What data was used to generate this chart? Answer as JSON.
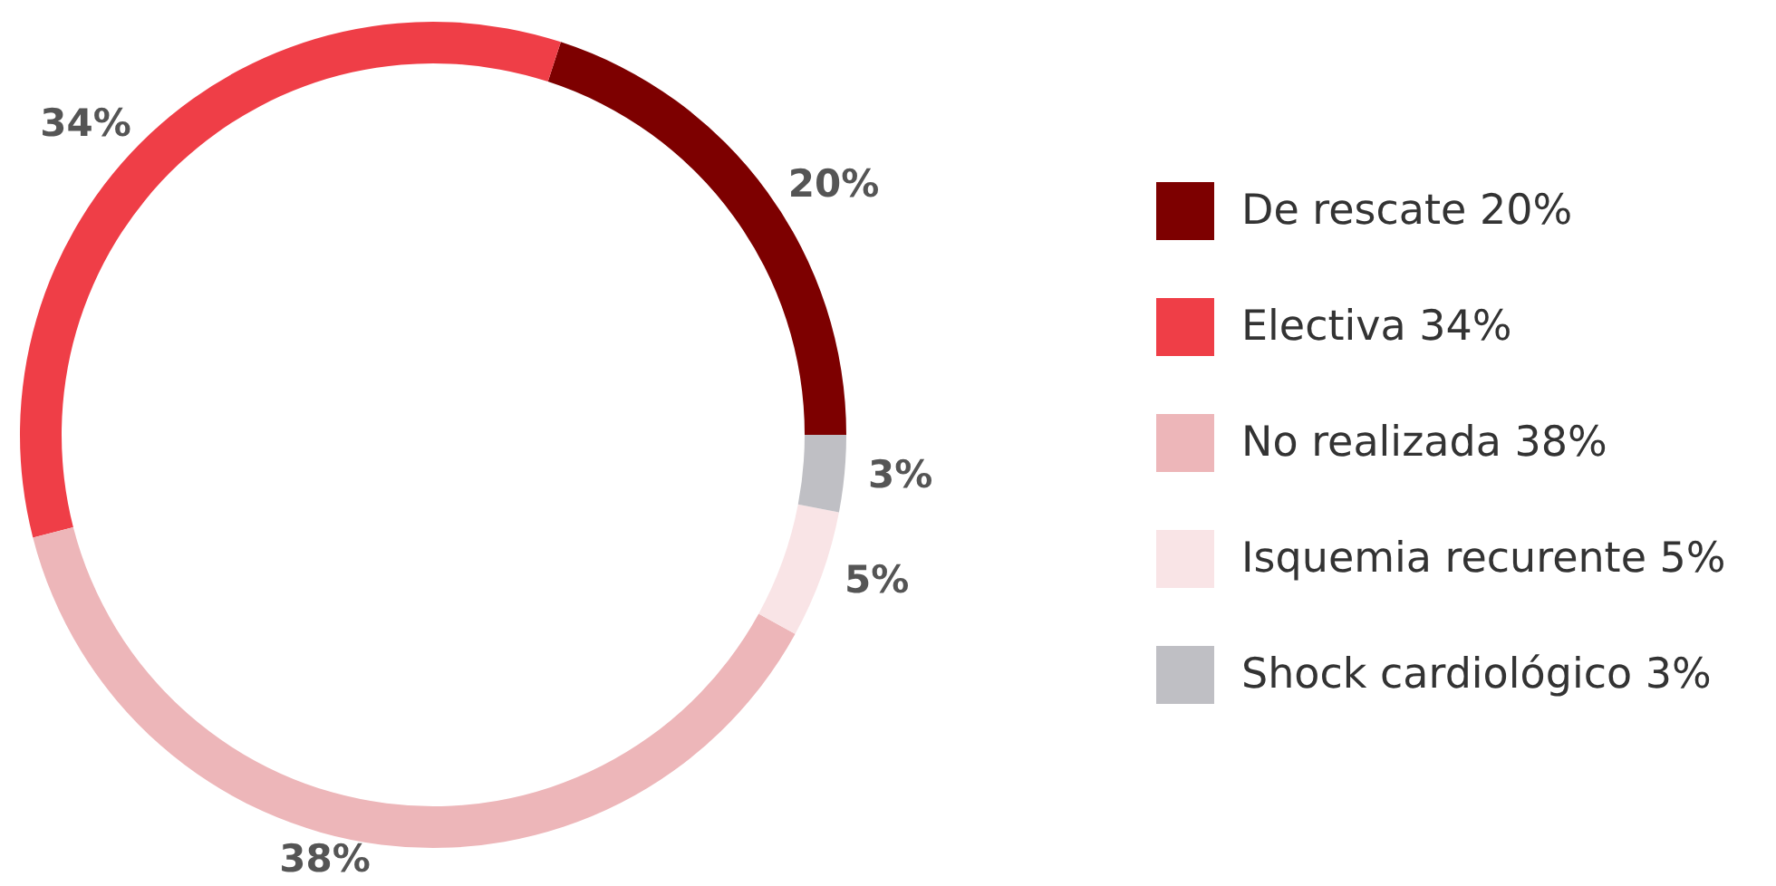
{
  "chart_data": {
    "type": "donut",
    "categories": [
      "De rescate 20%",
      "Electiva 34%",
      "No realizada 38%",
      "Isquemia recurente 5%",
      "Shock cardiológico 3%"
    ],
    "values": [
      20,
      34,
      38,
      5,
      3
    ],
    "value_labels": [
      "20%",
      "34%",
      "38%",
      "5%",
      "3%"
    ],
    "colors": [
      "#7d0000",
      "#ef3e47",
      "#edb6b9",
      "#f9e4e6",
      "#bfbfc4"
    ],
    "legend": "right"
  }
}
